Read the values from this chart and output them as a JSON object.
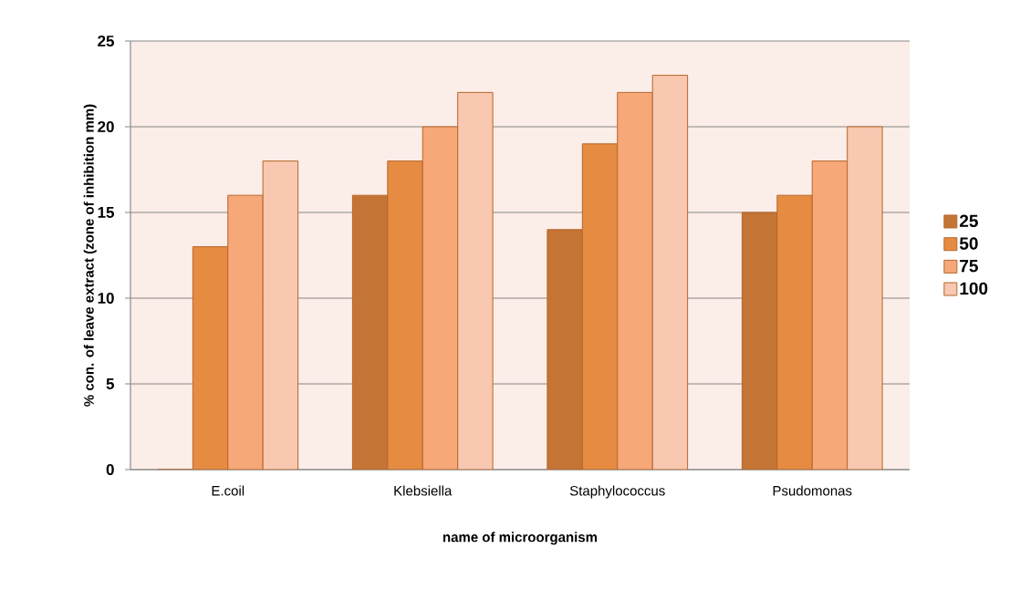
{
  "chart_data": {
    "type": "bar",
    "xlabel": "name of microorganism",
    "ylabel": "% con. of leave extract (zone of inhibition mm)",
    "categories": [
      "E.coil",
      "Klebsiella",
      "Staphylococcus",
      "Psudomonas"
    ],
    "series": [
      {
        "name": "25",
        "color": "#c47434",
        "values": [
          0,
          16,
          14,
          15
        ]
      },
      {
        "name": "50",
        "color": "#e68c42",
        "values": [
          13,
          18,
          19,
          16
        ]
      },
      {
        "name": "75",
        "color": "#f6a878",
        "values": [
          16,
          20,
          22,
          18
        ]
      },
      {
        "name": "100",
        "color": "#f8c8b0",
        "values": [
          18,
          22,
          23,
          20
        ]
      }
    ],
    "ylim": [
      0,
      25
    ],
    "yticks": [
      0,
      5,
      10,
      15,
      20,
      25
    ],
    "grid": "y",
    "legend": "right"
  }
}
